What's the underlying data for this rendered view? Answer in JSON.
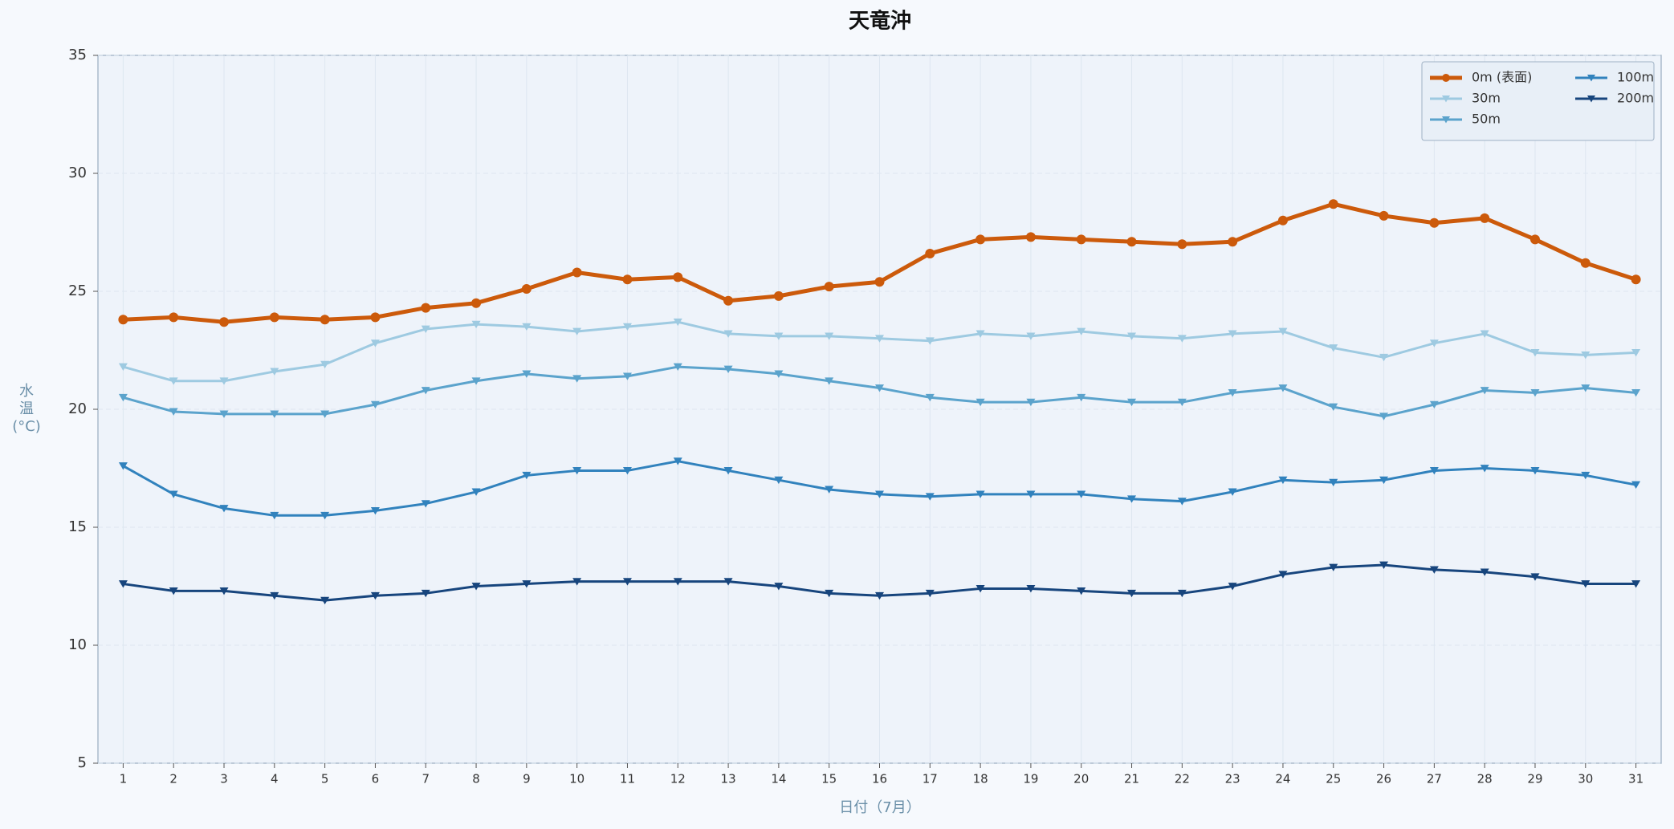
{
  "chart_data": {
    "type": "line",
    "title": "天竜沖",
    "x_label": "日付（7月）",
    "y_label": "水\n温\n(°C)",
    "categories": [
      "1",
      "2",
      "3",
      "4",
      "5",
      "6",
      "7",
      "8",
      "9",
      "10",
      "11",
      "12",
      "13",
      "14",
      "15",
      "16",
      "17",
      "18",
      "19",
      "20",
      "21",
      "22",
      "23",
      "24",
      "25",
      "26",
      "27",
      "28",
      "29",
      "30",
      "31"
    ],
    "series": [
      {
        "name": "0m (表面)",
        "color": "#cc5a0b",
        "marker": "circle",
        "values": [
          23.8,
          23.9,
          23.7,
          23.9,
          23.8,
          23.9,
          24.3,
          24.5,
          25.1,
          25.8,
          25.5,
          25.6,
          24.6,
          24.8,
          25.2,
          25.4,
          26.6,
          27.2,
          27.3,
          27.2,
          27.1,
          27.0,
          27.1,
          28.0,
          28.7,
          28.2,
          27.9,
          28.1,
          27.2,
          26.2,
          25.5
        ]
      },
      {
        "name": "30m",
        "color": "#9ecae1",
        "marker": "triangle-down",
        "values": [
          21.8,
          21.2,
          21.2,
          21.6,
          21.9,
          22.8,
          23.4,
          23.6,
          23.5,
          23.3,
          23.5,
          23.7,
          23.2,
          23.1,
          23.1,
          23.0,
          22.9,
          23.2,
          23.1,
          23.3,
          23.1,
          23.0,
          23.2,
          23.3,
          22.6,
          22.2,
          22.8,
          23.2,
          22.4,
          22.3,
          22.4
        ]
      },
      {
        "name": "50m",
        "color": "#5ba3cc",
        "marker": "triangle-down",
        "values": [
          20.5,
          19.9,
          19.8,
          19.8,
          19.8,
          20.2,
          20.8,
          21.2,
          21.5,
          21.3,
          21.4,
          21.8,
          21.7,
          21.5,
          21.2,
          20.9,
          20.5,
          20.3,
          20.3,
          20.5,
          20.3,
          20.3,
          20.7,
          20.9,
          20.1,
          19.7,
          20.2,
          20.8,
          20.7,
          20.9,
          20.7
        ]
      },
      {
        "name": "100m",
        "color": "#3182bd",
        "marker": "triangle-down",
        "values": [
          17.6,
          16.4,
          15.8,
          15.5,
          15.5,
          15.7,
          16.0,
          16.5,
          17.2,
          17.4,
          17.4,
          17.8,
          17.4,
          17.0,
          16.6,
          16.4,
          16.3,
          16.4,
          16.4,
          16.4,
          16.2,
          16.1,
          16.5,
          17.0,
          16.9,
          17.0,
          17.4,
          17.5,
          17.4,
          17.2,
          16.8
        ]
      },
      {
        "name": "200m",
        "color": "#17457d",
        "marker": "triangle-down",
        "values": [
          12.6,
          12.3,
          12.3,
          12.1,
          11.9,
          12.1,
          12.2,
          12.5,
          12.6,
          12.7,
          12.7,
          12.7,
          12.7,
          12.5,
          12.2,
          12.1,
          12.2,
          12.4,
          12.4,
          12.3,
          12.2,
          12.2,
          12.5,
          13.0,
          13.3,
          13.4,
          13.2,
          13.1,
          12.9,
          12.6,
          12.6
        ]
      }
    ],
    "ylim": [
      5,
      35
    ],
    "yticks": [
      5,
      10,
      15,
      20,
      25,
      30,
      35
    ],
    "grid": true,
    "legend_loc": "upper right",
    "legend_columns": 2
  }
}
